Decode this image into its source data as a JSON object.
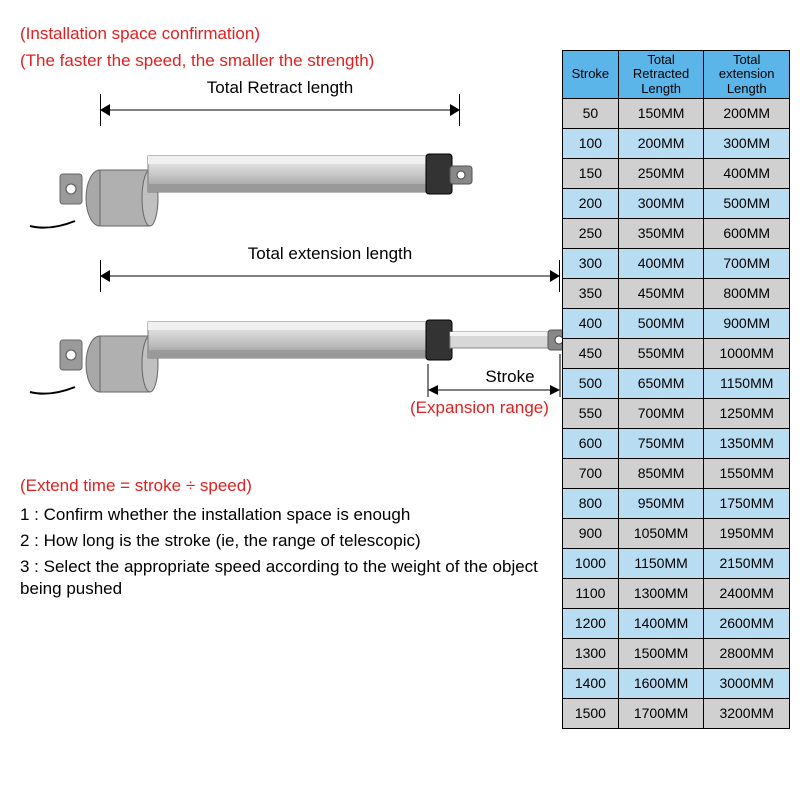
{
  "notes": {
    "install_confirm": "(Installation space confirmation)",
    "speed_strength": "(The faster the speed, the smaller the strength)",
    "retract_label": "Total Retract length",
    "extension_label": "Total extension length",
    "stroke_label": "Stroke",
    "expansion_range": "(Expansion range)",
    "extend_time": "(Extend time = stroke ÷ speed)",
    "step1": "1 : Confirm whether the installation space is enough",
    "step2": "2 : How long is the stroke (ie, the range of telescopic)",
    "step3": "3 : Select the appropriate speed according to the weight of the object being pushed"
  },
  "table": {
    "headers": {
      "stroke": "Stroke",
      "retracted": "Total Retracted Length",
      "extension": "Total extension Length"
    },
    "row_colors": {
      "odd": "#d0d0d0",
      "even": "#b8dcf2"
    },
    "header_bg": "#5bb5e8",
    "rows": [
      {
        "stroke": "50",
        "ret": "150MM",
        "ext": "200MM"
      },
      {
        "stroke": "100",
        "ret": "200MM",
        "ext": "300MM"
      },
      {
        "stroke": "150",
        "ret": "250MM",
        "ext": "400MM"
      },
      {
        "stroke": "200",
        "ret": "300MM",
        "ext": "500MM"
      },
      {
        "stroke": "250",
        "ret": "350MM",
        "ext": "600MM"
      },
      {
        "stroke": "300",
        "ret": "400MM",
        "ext": "700MM"
      },
      {
        "stroke": "350",
        "ret": "450MM",
        "ext": "800MM"
      },
      {
        "stroke": "400",
        "ret": "500MM",
        "ext": "900MM"
      },
      {
        "stroke": "450",
        "ret": "550MM",
        "ext": "1000MM"
      },
      {
        "stroke": "500",
        "ret": "650MM",
        "ext": "1150MM"
      },
      {
        "stroke": "550",
        "ret": "700MM",
        "ext": "1250MM"
      },
      {
        "stroke": "600",
        "ret": "750MM",
        "ext": "1350MM"
      },
      {
        "stroke": "700",
        "ret": "850MM",
        "ext": "1550MM"
      },
      {
        "stroke": "800",
        "ret": "950MM",
        "ext": "1750MM"
      },
      {
        "stroke": "900",
        "ret": "1050MM",
        "ext": "1950MM"
      },
      {
        "stroke": "1000",
        "ret": "1150MM",
        "ext": "2150MM"
      },
      {
        "stroke": "1100",
        "ret": "1300MM",
        "ext": "2400MM"
      },
      {
        "stroke": "1200",
        "ret": "1400MM",
        "ext": "2600MM"
      },
      {
        "stroke": "1300",
        "ret": "1500MM",
        "ext": "2800MM"
      },
      {
        "stroke": "1400",
        "ret": "1600MM",
        "ext": "3000MM"
      },
      {
        "stroke": "1500",
        "ret": "1700MM",
        "ext": "3200MM"
      }
    ]
  },
  "diagram": {
    "body_fill": "#d8d8d8",
    "body_stroke": "#777",
    "motor_fill": "#b0b0b0",
    "rod_fill": "#c8c8c8",
    "mount_fill": "#9a9a9a",
    "cable_color": "#000"
  }
}
